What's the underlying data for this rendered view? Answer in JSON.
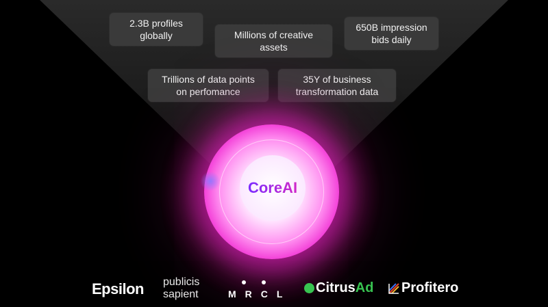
{
  "data_sources": [
    {
      "line1": "2.3B profiles",
      "line2": "globally"
    },
    {
      "line1": "Millions of creative",
      "line2": "assets"
    },
    {
      "line1": "650B impression",
      "line2": "bids daily"
    },
    {
      "line1": "Trillions of data points",
      "line2": "on perfomance"
    },
    {
      "line1": "35Y of business",
      "line2": "transformation data"
    }
  ],
  "core": {
    "label": "CoreAI"
  },
  "logos": {
    "epsilon": "Epsilon",
    "publicis_line1": "publicis",
    "publicis_line2": "sapient",
    "mrcl": "MRCL",
    "citrus_prefix": "Citrus",
    "citrus_suffix": "Ad",
    "profitero": "Profitero"
  },
  "colors": {
    "background": "#000000",
    "box": "#3a3a3a",
    "orb": "#f02cd2",
    "citrus_green": "#38c451"
  }
}
